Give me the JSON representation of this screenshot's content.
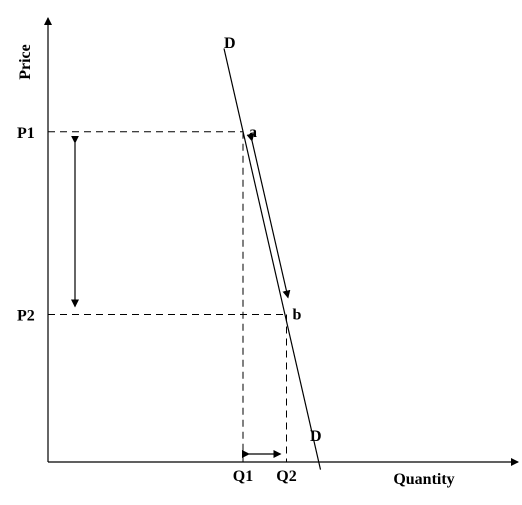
{
  "chart_data": {
    "type": "line",
    "title": "",
    "xlabel": "Quantity",
    "ylabel": "Price",
    "xlim": [
      0,
      10
    ],
    "ylim": [
      0,
      10
    ],
    "grid": false,
    "curve": {
      "name": "D",
      "label_top": "D",
      "label_bottom": "D",
      "points": [
        [
          3.52,
          9.73
        ],
        [
          5.45,
          -0.18
        ]
      ]
    },
    "points": [
      {
        "name": "a",
        "x": 3.9,
        "y": 7.77
      },
      {
        "name": "b",
        "x": 4.77,
        "y": 3.47
      }
    ],
    "price_ticks": [
      {
        "label": "P1",
        "value": 7.77
      },
      {
        "label": "P2",
        "value": 3.47
      }
    ],
    "quantity_ticks": [
      {
        "label": "Q1",
        "value": 3.9
      },
      {
        "label": "Q2",
        "value": 4.77
      }
    ]
  }
}
